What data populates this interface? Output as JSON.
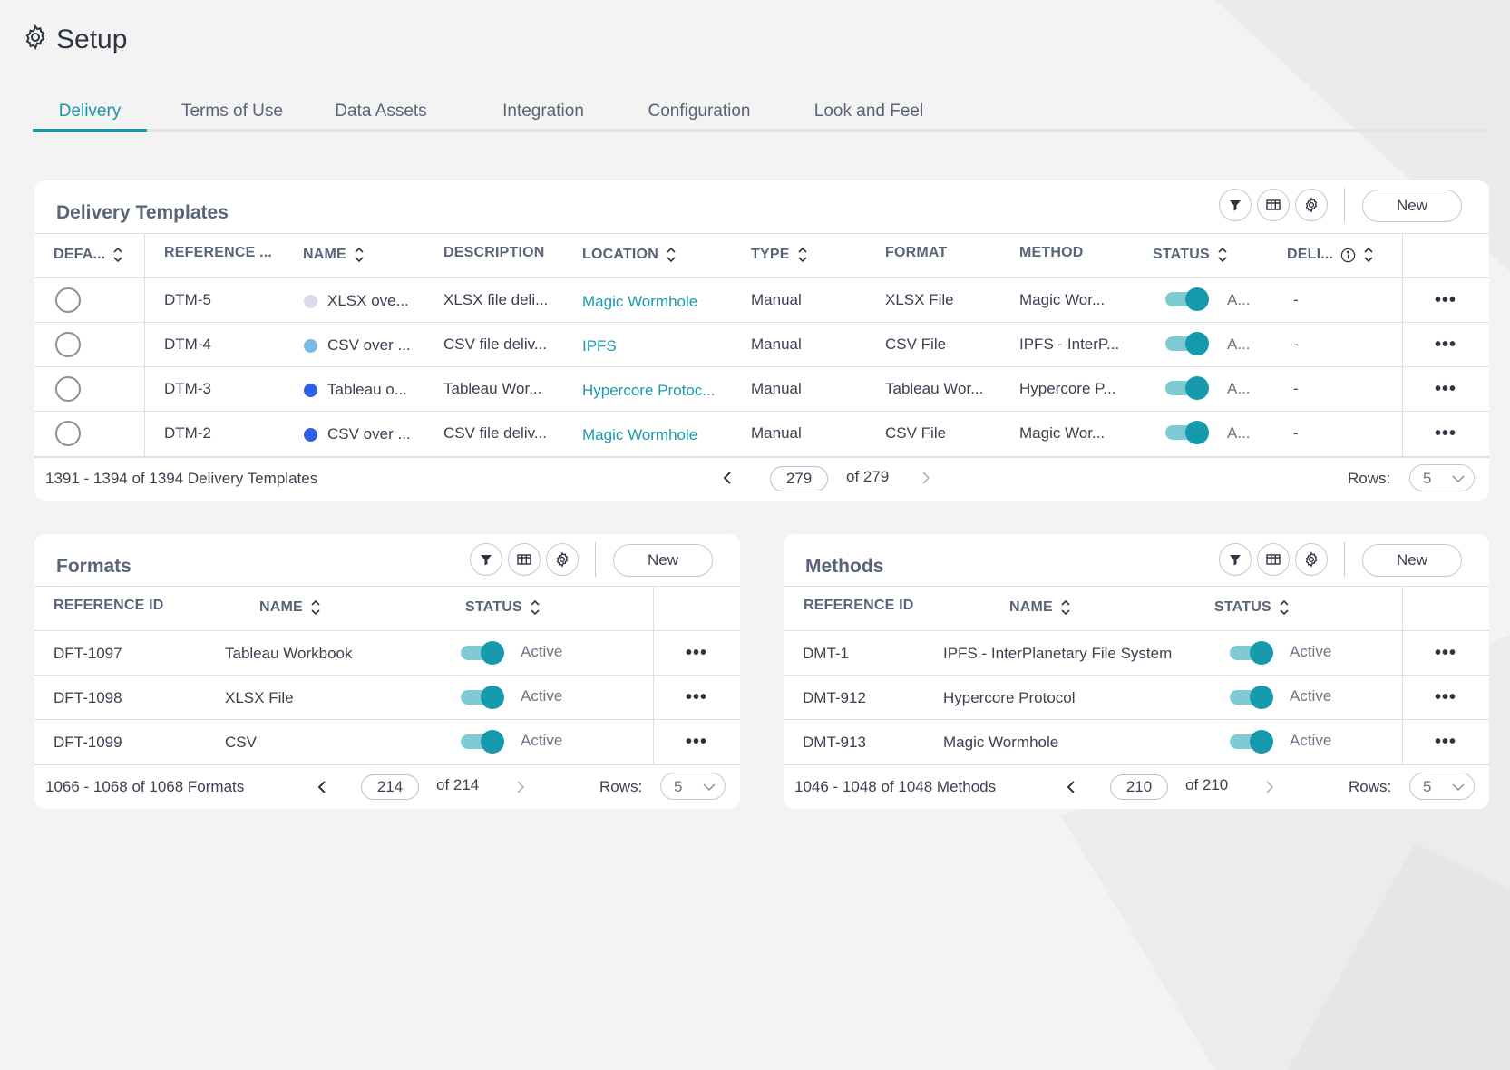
{
  "page": {
    "title": "Setup",
    "icon": "gear-icon",
    "accent_color": "#1b9aab"
  },
  "tabs": [
    {
      "label": "Delivery",
      "active": true
    },
    {
      "label": "Terms of Use",
      "active": false
    },
    {
      "label": "Data Assets",
      "active": false
    },
    {
      "label": "Integration",
      "active": false
    },
    {
      "label": "Configuration",
      "active": false
    },
    {
      "label": "Look and Feel",
      "active": false
    }
  ],
  "delivery_templates": {
    "title": "Delivery Templates",
    "new_label": "New",
    "columns": [
      "DEFA...",
      "REFERENCE ...",
      "NAME",
      "DESCRIPTION",
      "LOCATION",
      "TYPE",
      "FORMAT",
      "METHOD",
      "STATUS",
      "DELI..."
    ],
    "rows": [
      {
        "ref": "DTM-5",
        "name": "XLSX ove...",
        "dot_color": "#dcd9ec",
        "description": "XLSX file deli...",
        "location": "Magic Wormhole",
        "type": "Manual",
        "format": "XLSX File",
        "method": "Magic Wor...",
        "status": "A...",
        "delivery": "-"
      },
      {
        "ref": "DTM-4",
        "name": "CSV over ...",
        "dot_color": "#7ab8e6",
        "description": "CSV file deliv...",
        "location": "IPFS",
        "type": "Manual",
        "format": "CSV File",
        "method": "IPFS - InterP...",
        "status": "A...",
        "delivery": "-"
      },
      {
        "ref": "DTM-3",
        "name": "Tableau o...",
        "dot_color": "#2d5fe0",
        "description": "Tableau Wor...",
        "location": "Hypercore Protoc...",
        "type": "Manual",
        "format": "Tableau Wor...",
        "method": "Hypercore P...",
        "status": "A...",
        "delivery": "-"
      },
      {
        "ref": "DTM-2",
        "name": "CSV over ...",
        "dot_color": "#2d5fe0",
        "description": "CSV file deliv...",
        "location": "Magic Wormhole",
        "type": "Manual",
        "format": "CSV File",
        "method": "Magic Wor...",
        "status": "A...",
        "delivery": "-"
      }
    ],
    "footer": {
      "range": "1391 - 1394 of 1394 Delivery Templates",
      "page": "279",
      "of": "of 279",
      "rows_label": "Rows:",
      "rows_value": "5"
    }
  },
  "formats": {
    "title": "Formats",
    "new_label": "New",
    "columns": [
      "REFERENCE ID",
      "NAME",
      "STATUS"
    ],
    "rows": [
      {
        "ref": "DFT-1097",
        "name": "Tableau Workbook",
        "status": "Active"
      },
      {
        "ref": "DFT-1098",
        "name": "XLSX File",
        "status": "Active"
      },
      {
        "ref": "DFT-1099",
        "name": "CSV",
        "status": "Active"
      }
    ],
    "footer": {
      "range": "1066 - 1068 of 1068 Formats",
      "page": "214",
      "of": "of 214",
      "rows_label": "Rows:",
      "rows_value": "5"
    }
  },
  "methods": {
    "title": "Methods",
    "new_label": "New",
    "columns": [
      "REFERENCE ID",
      "NAME",
      "STATUS"
    ],
    "rows": [
      {
        "ref": "DMT-1",
        "name": "IPFS - InterPlanetary File System",
        "status": "Active"
      },
      {
        "ref": "DMT-912",
        "name": "Hypercore Protocol",
        "status": "Active"
      },
      {
        "ref": "DMT-913",
        "name": "Magic Wormhole",
        "status": "Active"
      }
    ],
    "footer": {
      "range": "1046 - 1048 of 1048 Methods",
      "page": "210",
      "of": "of 210",
      "rows_label": "Rows:",
      "rows_value": "5"
    }
  }
}
